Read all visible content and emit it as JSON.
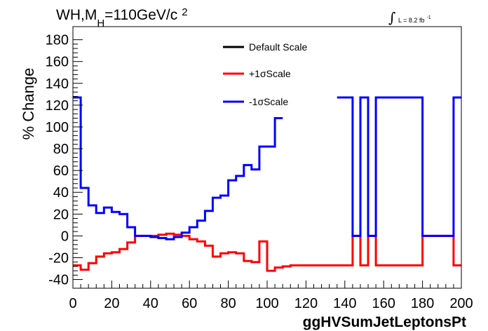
{
  "chart_data": {
    "type": "line",
    "xlabel": "ggHVSumJetLeptonsPt",
    "ylabel": "% Change",
    "xlim": [
      0,
      200
    ],
    "ylim": [
      -48,
      192
    ],
    "x_ticks": [
      0,
      20,
      40,
      60,
      80,
      100,
      120,
      140,
      160,
      180,
      200
    ],
    "y_ticks": [
      -40,
      -20,
      0,
      20,
      40,
      60,
      80,
      100,
      120,
      140,
      160,
      180
    ],
    "legend_position": "top-center",
    "legend": [
      "Default Scale",
      "+1σScale",
      "-1σScale"
    ],
    "annotations": {
      "process": "WH,M",
      "process_sub": "H",
      "process_rest": "=110GeV/c",
      "process_sup": "2",
      "lumi_sym": "∫",
      "lumi": "L = 8.2 fb",
      "lumi_sup": "-1"
    },
    "bin_width": 4,
    "series": [
      {
        "name": "Default Scale",
        "color": "#000000",
        "bins": []
      },
      {
        "name": "+1σScale",
        "color": "#ff0000",
        "bins": [
          [
            0,
            -27
          ],
          [
            4,
            -31
          ],
          [
            8,
            -25
          ],
          [
            12,
            -19
          ],
          [
            16,
            -16
          ],
          [
            20,
            -15
          ],
          [
            24,
            -12
          ],
          [
            28,
            -6
          ],
          [
            32,
            0
          ],
          [
            36,
            0
          ],
          [
            40,
            0
          ],
          [
            44,
            1
          ],
          [
            48,
            2
          ],
          [
            52,
            1
          ],
          [
            56,
            0
          ],
          [
            60,
            -3
          ],
          [
            64,
            -5
          ],
          [
            68,
            -9
          ],
          [
            72,
            -19
          ],
          [
            76,
            -16
          ],
          [
            80,
            -15
          ],
          [
            84,
            -16
          ],
          [
            88,
            -23
          ],
          [
            92,
            -24
          ],
          [
            96,
            -5
          ],
          [
            100,
            -32
          ],
          [
            104,
            -29
          ],
          [
            108,
            -28
          ],
          [
            112,
            -27
          ],
          [
            116,
            -27
          ],
          [
            120,
            -27
          ],
          [
            124,
            -27
          ],
          [
            128,
            -27
          ],
          [
            132,
            -27
          ],
          [
            136,
            -27
          ],
          [
            140,
            -27
          ],
          [
            144,
            0
          ],
          [
            148,
            -27
          ],
          [
            152,
            0
          ],
          [
            156,
            -27
          ],
          [
            160,
            -27
          ],
          [
            164,
            -27
          ],
          [
            168,
            -27
          ],
          [
            172,
            -27
          ],
          [
            176,
            -27
          ],
          [
            180,
            0
          ],
          [
            184,
            0
          ],
          [
            188,
            0
          ],
          [
            192,
            0
          ],
          [
            196,
            -27
          ]
        ]
      },
      {
        "name": "-1σScale",
        "color": "#0000ff",
        "bins": [
          [
            0,
            127
          ],
          [
            4,
            44
          ],
          [
            8,
            28
          ],
          [
            12,
            21
          ],
          [
            16,
            26
          ],
          [
            20,
            22
          ],
          [
            24,
            20
          ],
          [
            28,
            8
          ],
          [
            32,
            0
          ],
          [
            36,
            0
          ],
          [
            40,
            -1
          ],
          [
            44,
            -2
          ],
          [
            48,
            -3
          ],
          [
            52,
            -1
          ],
          [
            56,
            3
          ],
          [
            60,
            8
          ],
          [
            64,
            14
          ],
          [
            68,
            23
          ],
          [
            72,
            35
          ],
          [
            76,
            37
          ],
          [
            80,
            51
          ],
          [
            84,
            55
          ],
          [
            88,
            65
          ],
          [
            92,
            61
          ],
          [
            96,
            82
          ],
          [
            100,
            82
          ],
          [
            104,
            108
          ],
          [
            136,
            127
          ],
          [
            140,
            127
          ],
          [
            144,
            0
          ],
          [
            148,
            127
          ],
          [
            152,
            0
          ],
          [
            156,
            127
          ],
          [
            160,
            127
          ],
          [
            164,
            127
          ],
          [
            168,
            127
          ],
          [
            172,
            127
          ],
          [
            176,
            127
          ],
          [
            180,
            0
          ],
          [
            184,
            0
          ],
          [
            188,
            0
          ],
          [
            192,
            0
          ],
          [
            196,
            127
          ]
        ]
      }
    ]
  }
}
